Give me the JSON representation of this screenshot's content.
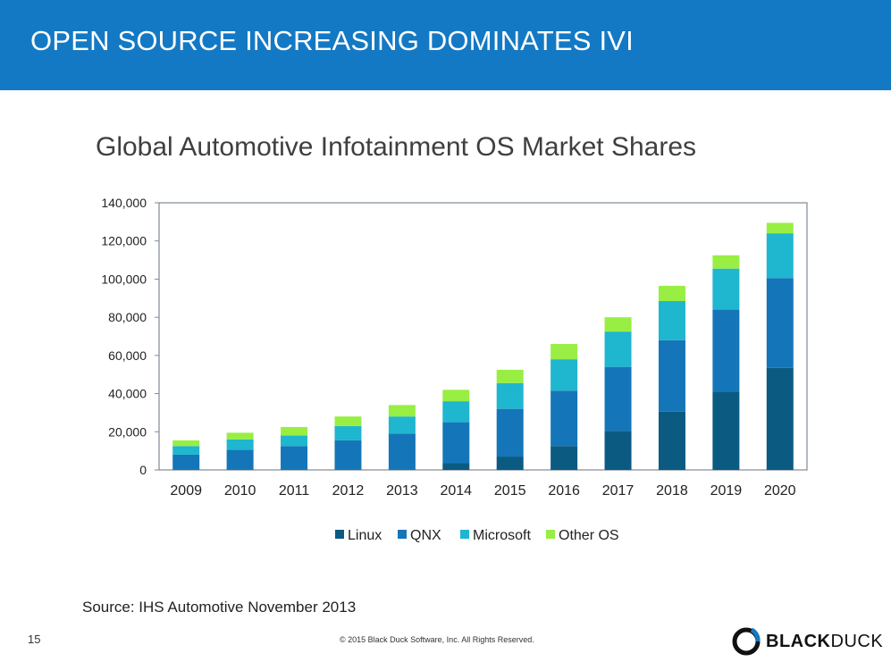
{
  "slide": {
    "title": "OPEN SOURCE INCREASING DOMINATES IVI",
    "source": "Source: IHS Automotive November 2013",
    "page_number": "15",
    "copyright": "© 2015 Black Duck Software, Inc.  All Rights Reserved.",
    "logo_bold": "BLACK",
    "logo_light": "DUCK",
    "header_color": "#1479c4"
  },
  "chart_data": {
    "type": "bar",
    "stacked": true,
    "title": "Global Automotive Infotainment OS Market Shares",
    "categories": [
      "2009",
      "2010",
      "2011",
      "2012",
      "2013",
      "2014",
      "2015",
      "2016",
      "2017",
      "2018",
      "2019",
      "2020"
    ],
    "series": [
      {
        "name": "Linux",
        "color": "#0b5a82",
        "values": [
          0,
          0,
          0,
          0,
          0,
          3500,
          7000,
          12500,
          20500,
          30500,
          41000,
          53500
        ]
      },
      {
        "name": "QNX",
        "color": "#1476b8",
        "values": [
          8000,
          10500,
          12500,
          15500,
          19000,
          21500,
          25000,
          29000,
          33500,
          37500,
          43000,
          47000
        ]
      },
      {
        "name": "Microsoft",
        "color": "#1fb6cf",
        "values": [
          4500,
          5500,
          5500,
          7500,
          9000,
          11000,
          13500,
          16500,
          18500,
          20500,
          21500,
          23500
        ]
      },
      {
        "name": "Other OS",
        "color": "#99ee44",
        "values": [
          3000,
          3500,
          4500,
          5000,
          6000,
          6000,
          7000,
          8000,
          7500,
          8000,
          7000,
          5500
        ]
      }
    ],
    "ylim": [
      0,
      140000
    ],
    "yticks": [
      "0",
      "20,000",
      "40,000",
      "60,000",
      "80,000",
      "100,000",
      "120,000",
      "140,000"
    ],
    "grid": false,
    "legend_position": "bottom"
  }
}
